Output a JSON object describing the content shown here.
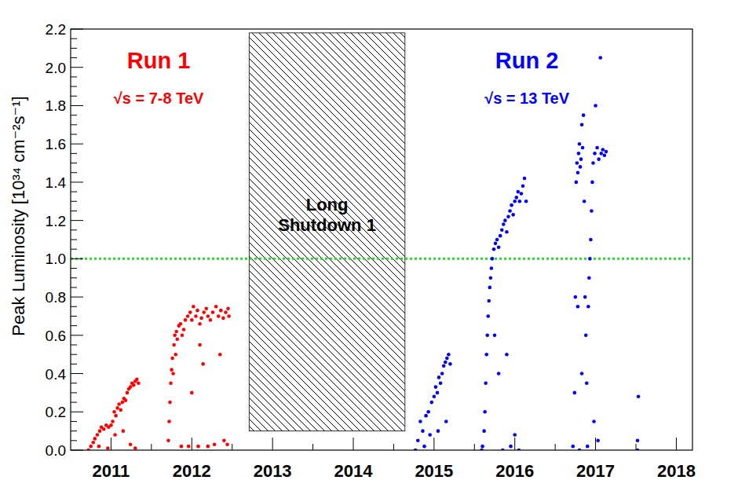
{
  "chart_data": {
    "type": "scatter",
    "ylabel": "Peak Luminosity [10³⁴ cm⁻²s⁻¹]",
    "xlim": [
      2010.5,
      2018.2
    ],
    "xticks": [
      2011,
      2012,
      2013,
      2014,
      2015,
      2016,
      2017,
      2018
    ],
    "ylim": [
      0,
      2.2
    ],
    "yticks": [
      {
        "value": 0,
        "label": "0.0"
      },
      0.2,
      0.4,
      0.6,
      0.8,
      {
        "value": 1,
        "label": "1.0"
      },
      1.2,
      1.4,
      1.6,
      1.8,
      {
        "value": 2,
        "label": "2.0"
      },
      2.2
    ],
    "grid": false,
    "reference_line": 1.0,
    "shaded_region": {
      "x": [
        2012.71,
        2014.64
      ],
      "y": [
        0.1,
        2.18
      ],
      "label": "Long Shutdown 1"
    },
    "series": [
      {
        "name": "Run 1",
        "annotation": "√s = 7-8 TeV",
        "color": "#ff0000",
        "marker": "circle",
        "x": [
          2010.72,
          2010.75,
          2010.78,
          2010.8,
          2010.83,
          2010.86,
          2010.88,
          2010.91,
          2010.94,
          2010.97,
          2011.0,
          2011.02,
          2011.04,
          2011.06,
          2011.08,
          2011.1,
          2011.12,
          2011.14,
          2011.16,
          2011.18,
          2011.2,
          2011.22,
          2011.24,
          2011.26,
          2011.28,
          2011.3,
          2011.32,
          2011.34,
          2010.85,
          2010.96,
          2011.05,
          2011.15,
          2011.24,
          2011.3,
          2011.71,
          2011.72,
          2011.73,
          2011.74,
          2011.75,
          2011.76,
          2011.77,
          2011.78,
          2011.79,
          2011.8,
          2011.81,
          2011.82,
          2011.84,
          2011.86,
          2011.88,
          2011.9,
          2011.92,
          2011.95,
          2011.98,
          2012.0,
          2012.02,
          2012.05,
          2012.07,
          2012.1,
          2012.12,
          2012.15,
          2012.18,
          2012.2,
          2012.23,
          2012.26,
          2012.3,
          2012.33,
          2012.36,
          2012.39,
          2012.42,
          2012.45,
          2012.46,
          2011.87,
          2011.96,
          2012.0,
          2012.08,
          2012.14,
          2012.2,
          2012.28,
          2012.35,
          2012.4,
          2012.44,
          2012.1
        ],
        "values": [
          0.0,
          0.02,
          0.04,
          0.06,
          0.08,
          0.1,
          0.12,
          0.11,
          0.13,
          0.12,
          0.13,
          0.15,
          0.2,
          0.18,
          0.22,
          0.24,
          0.21,
          0.25,
          0.27,
          0.26,
          0.3,
          0.32,
          0.33,
          0.35,
          0.34,
          0.36,
          0.37,
          0.35,
          0.02,
          0.01,
          0.08,
          0.1,
          0.03,
          0.01,
          0.05,
          0.15,
          0.25,
          0.35,
          0.42,
          0.48,
          0.4,
          0.55,
          0.6,
          0.5,
          0.62,
          0.58,
          0.65,
          0.66,
          0.6,
          0.63,
          0.68,
          0.7,
          0.72,
          0.68,
          0.75,
          0.7,
          0.73,
          0.66,
          0.69,
          0.72,
          0.74,
          0.7,
          0.68,
          0.72,
          0.75,
          0.7,
          0.73,
          0.69,
          0.72,
          0.74,
          0.7,
          0.02,
          0.02,
          0.3,
          0.02,
          0.45,
          0.02,
          0.03,
          0.5,
          0.05,
          0.03,
          0.55
        ]
      },
      {
        "name": "Run 2",
        "annotation": "√s = 13 TeV",
        "color": "#0000ff",
        "marker": "circle",
        "x": [
          2014.77,
          2014.8,
          2014.83,
          2014.86,
          2014.88,
          2014.9,
          2014.93,
          2014.95,
          2014.97,
          2015.0,
          2015.02,
          2015.04,
          2015.06,
          2015.08,
          2015.1,
          2015.12,
          2015.14,
          2015.16,
          2015.18,
          2015.2,
          2015.05,
          2015.15,
          2015.59,
          2015.6,
          2015.62,
          2015.63,
          2015.64,
          2015.65,
          2015.66,
          2015.67,
          2015.68,
          2015.69,
          2015.7,
          2015.71,
          2015.72,
          2015.74,
          2015.76,
          2015.78,
          2015.8,
          2015.82,
          2015.84,
          2015.86,
          2015.88,
          2015.9,
          2015.92,
          2015.94,
          2015.96,
          2015.98,
          2016.0,
          2016.02,
          2016.04,
          2016.06,
          2016.08,
          2016.1,
          2016.12,
          2016.14,
          2015.75,
          2015.85,
          2015.9,
          2015.95,
          2016.0,
          2016.05,
          2015.8,
          2016.72,
          2016.74,
          2016.75,
          2016.76,
          2016.77,
          2016.78,
          2016.79,
          2016.8,
          2016.81,
          2016.82,
          2016.83,
          2016.84,
          2016.85,
          2016.86,
          2016.87,
          2016.88,
          2016.89,
          2016.9,
          2016.91,
          2016.92,
          2016.93,
          2016.94,
          2016.95,
          2016.96,
          2016.97,
          2016.99,
          2017.0,
          2017.02,
          2017.04,
          2017.06,
          2017.07,
          2017.09,
          2017.11,
          2017.13,
          2016.78,
          2016.83,
          2016.98,
          2017.03,
          2016.8,
          2017.53,
          2017.52,
          2017.52
        ],
        "values": [
          0.0,
          0.05,
          0.15,
          0.1,
          0.02,
          0.18,
          0.2,
          0.08,
          0.25,
          0.28,
          0.33,
          0.3,
          0.38,
          0.35,
          0.4,
          0.44,
          0.46,
          0.48,
          0.5,
          0.45,
          0.1,
          0.15,
          0.0,
          0.02,
          0.1,
          0.2,
          0.35,
          0.5,
          0.6,
          0.7,
          0.78,
          0.85,
          0.9,
          0.95,
          1.0,
          1.05,
          1.08,
          1.1,
          1.06,
          1.12,
          1.15,
          1.18,
          1.2,
          1.14,
          1.22,
          1.25,
          1.28,
          1.23,
          1.3,
          1.32,
          1.35,
          1.3,
          1.34,
          1.38,
          1.42,
          1.3,
          0.6,
          0.0,
          0.5,
          0.02,
          0.08,
          0.0,
          0.4,
          0.02,
          0.3,
          0.8,
          1.4,
          1.5,
          1.45,
          1.55,
          1.6,
          1.48,
          1.52,
          1.7,
          1.58,
          1.75,
          1.3,
          0.8,
          0.6,
          0.35,
          0.02,
          0.75,
          0.9,
          1.0,
          1.1,
          1.25,
          1.4,
          1.5,
          1.55,
          1.8,
          1.58,
          1.52,
          2.05,
          1.55,
          1.57,
          1.54,
          1.56,
          0.75,
          0.4,
          0.15,
          0.05,
          0.0,
          0.28,
          0.05,
          0.0
        ]
      }
    ]
  }
}
